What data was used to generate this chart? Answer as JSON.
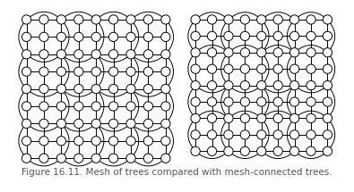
{
  "title": "Figure 16.11. Mesh of trees compared with mesh-connected trees.",
  "title_fontsize": 7.5,
  "title_color": "#555555",
  "bg_color": "#ffffff",
  "node_color": "white",
  "node_edge_color": "black",
  "line_color": "black",
  "line_width": 0.7
}
